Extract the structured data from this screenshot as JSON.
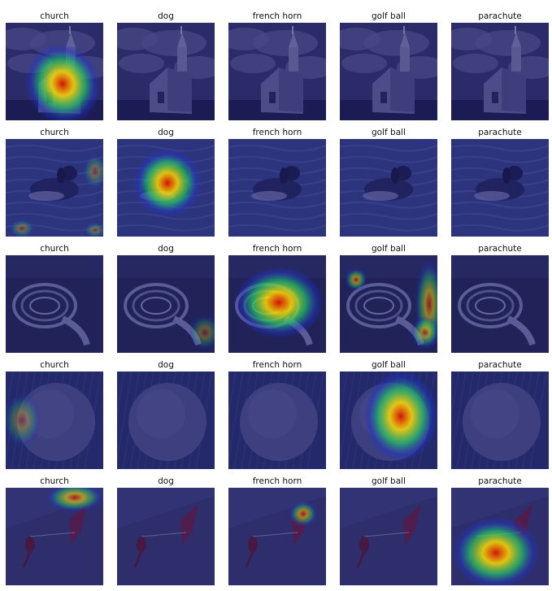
{
  "columns": [
    "church",
    "dog",
    "french horn",
    "golf ball",
    "parachute"
  ],
  "rows": [
    {
      "subject": "church",
      "heatmap_strength": [
        1.0,
        0.0,
        0.0,
        0.0,
        0.0
      ]
    },
    {
      "subject": "dog",
      "heatmap_strength": [
        0.25,
        1.0,
        0.0,
        0.0,
        0.0
      ]
    },
    {
      "subject": "french horn",
      "heatmap_strength": [
        0.0,
        0.2,
        1.0,
        0.6,
        0.0
      ]
    },
    {
      "subject": "golf ball",
      "heatmap_strength": [
        0.15,
        0.0,
        0.0,
        1.0,
        0.0
      ]
    },
    {
      "subject": "parachute",
      "heatmap_strength": [
        0.7,
        0.0,
        0.6,
        0.0,
        1.0
      ]
    }
  ],
  "colors": {
    "overlay_tint": "#1a1a6e",
    "heat_low": "#2233cc",
    "heat_mid": "#22cc66",
    "heat_high": "#ffdd00",
    "heat_peak": "#dd1100"
  }
}
